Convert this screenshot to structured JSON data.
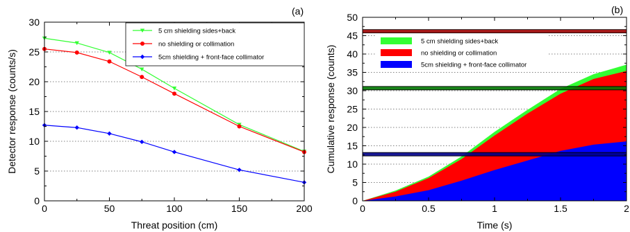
{
  "colors": {
    "green": "#33ff33",
    "red": "#ff0000",
    "blue": "#0000ff",
    "dark_red": "#990000",
    "dark_green": "#007700",
    "dark_blue": "#000088"
  },
  "chart_data": [
    {
      "type": "line",
      "panel_label": "(a)",
      "xlabel": "Threat position (cm)",
      "ylabel": "Detector response (counts/s)",
      "xlim": [
        0,
        200
      ],
      "ylim": [
        0,
        30
      ],
      "xticks": [
        0,
        50,
        100,
        150,
        200
      ],
      "yticks": [
        0,
        5,
        10,
        15,
        20,
        25,
        30
      ],
      "grid": "horizontal dotted",
      "legend_position": "top-right",
      "series": [
        {
          "name": "5 cm shielding sides+back",
          "color": "#33ff33",
          "marker": "triangle-down",
          "x": [
            0,
            25,
            50,
            75,
            100,
            150,
            200
          ],
          "y": [
            27.3,
            26.5,
            24.9,
            22.1,
            18.9,
            12.8,
            8.3
          ]
        },
        {
          "name": "no shielding or collimation",
          "color": "#ff0000",
          "marker": "circle",
          "x": [
            0,
            25,
            50,
            75,
            100,
            150,
            200
          ],
          "y": [
            25.5,
            24.9,
            23.4,
            20.8,
            18.0,
            12.5,
            8.2
          ]
        },
        {
          "name": "5cm shielding + front-face collimator",
          "color": "#0000ff",
          "marker": "diamond",
          "x": [
            0,
            25,
            50,
            75,
            100,
            150,
            200
          ],
          "y": [
            12.7,
            12.3,
            11.3,
            9.9,
            8.2,
            5.2,
            3.1
          ]
        }
      ]
    },
    {
      "type": "area",
      "panel_label": "(b)",
      "xlabel": "Time (s)",
      "ylabel": "Cumulative response (counts)",
      "xlim": [
        0,
        2
      ],
      "ylim": [
        0,
        50
      ],
      "xticks": [
        0,
        0.5,
        1,
        1.5,
        2
      ],
      "yticks": [
        0,
        5,
        10,
        15,
        20,
        25,
        30,
        35,
        40,
        45,
        50
      ],
      "grid": "horizontal dotted",
      "legend_position": "top-left",
      "series": [
        {
          "name": "5 cm shielding sides+back",
          "color": "#33ff33",
          "x": [
            0,
            0.25,
            0.5,
            0.75,
            1.0,
            1.25,
            1.5,
            1.75,
            2.0
          ],
          "y": [
            0,
            2.8,
            6.6,
            12.1,
            18.8,
            24.8,
            30.5,
            34.5,
            37.1
          ]
        },
        {
          "name": "no shielding or collimation",
          "color": "#ff0000",
          "x": [
            0,
            0.25,
            0.5,
            0.75,
            1.0,
            1.25,
            1.5,
            1.75,
            2.0
          ],
          "y": [
            0,
            2.5,
            6.2,
            11.4,
            17.8,
            23.8,
            29.2,
            33.2,
            35.4
          ]
        },
        {
          "name": "5cm shielding + front-face collimator",
          "color": "#0000ff",
          "x": [
            0,
            0.25,
            0.5,
            0.75,
            1.0,
            1.25,
            1.5,
            1.75,
            2.0
          ],
          "y": [
            0,
            1.2,
            2.9,
            5.5,
            8.4,
            11.0,
            13.6,
            15.3,
            16.2
          ]
        }
      ],
      "thresholds": [
        {
          "color": "#990000",
          "y": 46.2
        },
        {
          "color": "#007700",
          "y": 30.7
        },
        {
          "color": "#000088",
          "y": 12.7
        }
      ]
    }
  ]
}
